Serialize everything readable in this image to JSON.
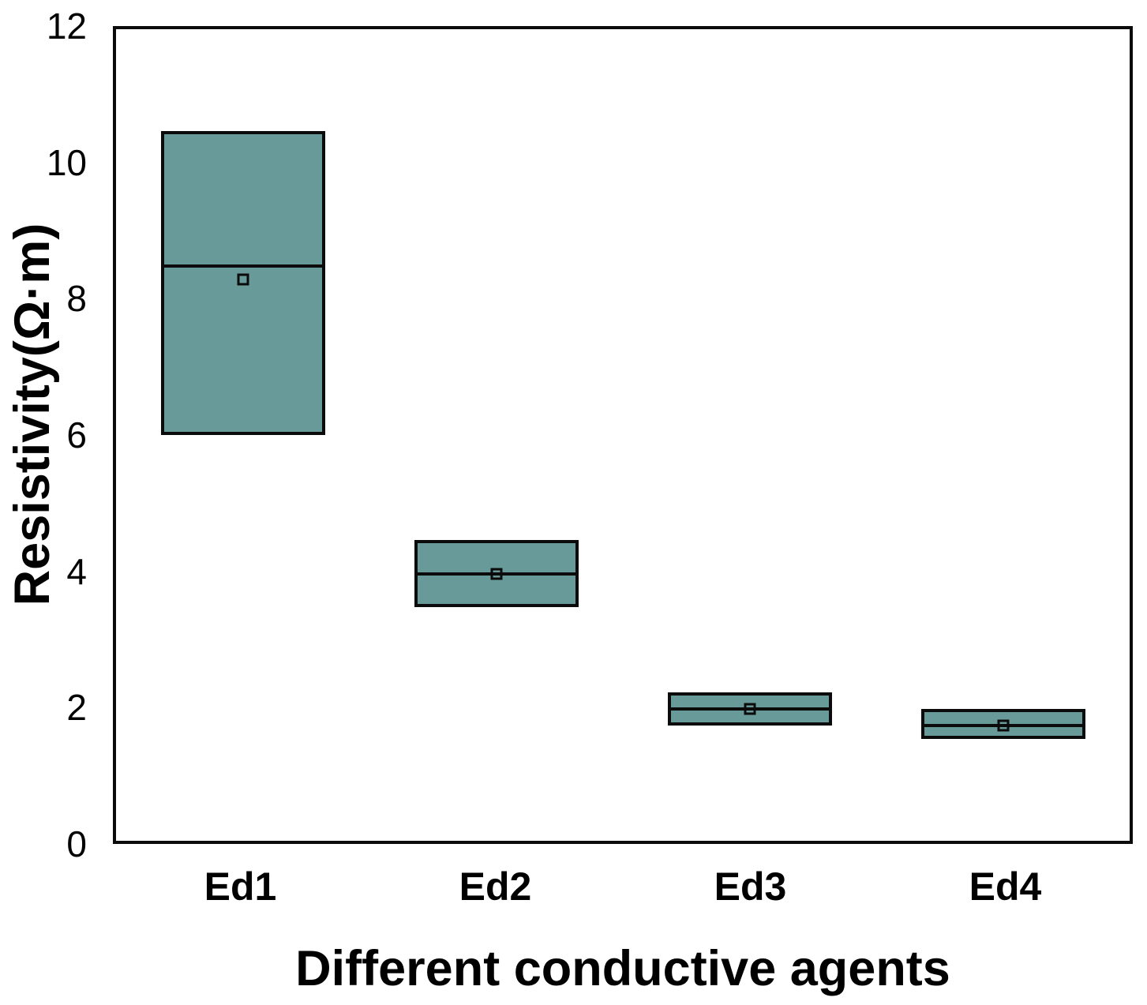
{
  "figure": {
    "background_color": "#ffffff",
    "border_color": "#0b0b0b"
  },
  "chart_data": {
    "type": "box",
    "title": "",
    "xlabel": "Different conductive agents",
    "ylabel": "Resistivity(Ω·m)",
    "categories": [
      "Ed1",
      "Ed2",
      "Ed3",
      "Ed4"
    ],
    "series": [
      {
        "name": "Ed1",
        "q1": 6.0,
        "median": 8.5,
        "q3": 10.5,
        "mean": 8.3
      },
      {
        "name": "Ed2",
        "q1": 3.45,
        "median": 3.95,
        "q3": 4.45,
        "mean": 3.95
      },
      {
        "name": "Ed3",
        "q1": 1.7,
        "median": 1.95,
        "q3": 2.2,
        "mean": 1.95
      },
      {
        "name": "Ed4",
        "q1": 1.5,
        "median": 1.7,
        "q3": 1.95,
        "mean": 1.7
      }
    ],
    "whiskers": false,
    "mean_marker": "open-square",
    "ylim": [
      0,
      12
    ],
    "y_ticks": [
      0,
      2,
      4,
      6,
      8,
      10,
      12
    ],
    "grid": false,
    "legend": false,
    "box_fill_color": "#689a99",
    "box_edge_color": "#0b0b0b",
    "median_line_color": "#0b0b0b"
  }
}
